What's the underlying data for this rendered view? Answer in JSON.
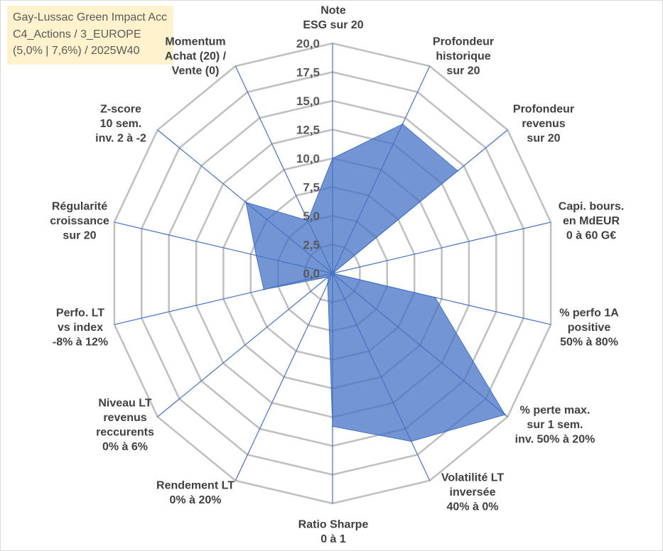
{
  "chart_data": {
    "type": "area",
    "polar": true,
    "title": "Gay-Lussac Green Impact Acc",
    "subtitle": [
      "C4_Actions / 3_EUROPE",
      "(5,0% | 7,6%) / 2025W40"
    ],
    "categories": [
      [
        "Note",
        "ESG sur 20"
      ],
      [
        "Profondeur",
        "historique",
        "sur 20"
      ],
      [
        "Profondeur",
        "revenus",
        "sur 20"
      ],
      [
        "Capi. bours.",
        "en MdEUR",
        "0 à 60 G€"
      ],
      [
        "% perfo 1A",
        "positive",
        "50% à 80%"
      ],
      [
        "% perte max.",
        "sur 1 sem.",
        "inv. 50% à 20%"
      ],
      [
        "Volatilité LT",
        "inversée",
        "40% à 0%"
      ],
      [
        "Ratio Sharpe",
        "0 à 1"
      ],
      [
        "Rendement LT",
        "0% à 20%"
      ],
      [
        "Niveau LT",
        "revenus",
        "reccurents",
        "0% à 6%"
      ],
      [
        "Perfo. LT",
        "vs index",
        "-8% à 12%"
      ],
      [
        "Régularité",
        "croissance",
        "sur 20"
      ],
      [
        "Z-score",
        "10 sem.",
        "inv. 2 à -2"
      ],
      [
        "Momentum",
        "Achat (20) /",
        "Vente (0)"
      ]
    ],
    "values": [
      10.0,
      14.4,
      14.3,
      0.0,
      9.4,
      19.7,
      16.2,
      13.3,
      1.0,
      0.5,
      6.3,
      7.0,
      9.9,
      5.1
    ],
    "ylim": [
      0,
      20
    ],
    "yticks": [
      0,
      2.5,
      5,
      7.5,
      10,
      12.5,
      15,
      17.5,
      20
    ],
    "ytick_labels": [
      "0,0",
      "2,5",
      "5,0",
      "7,5",
      "10,0",
      "12,5",
      "15,0",
      "17,5",
      "20,0"
    ],
    "grid": true,
    "legend": false,
    "colors": {
      "series": "#4472C4",
      "spoke": "#4472C4",
      "grid": "#BFBFBF",
      "title_box": "#FFF2CC"
    }
  }
}
